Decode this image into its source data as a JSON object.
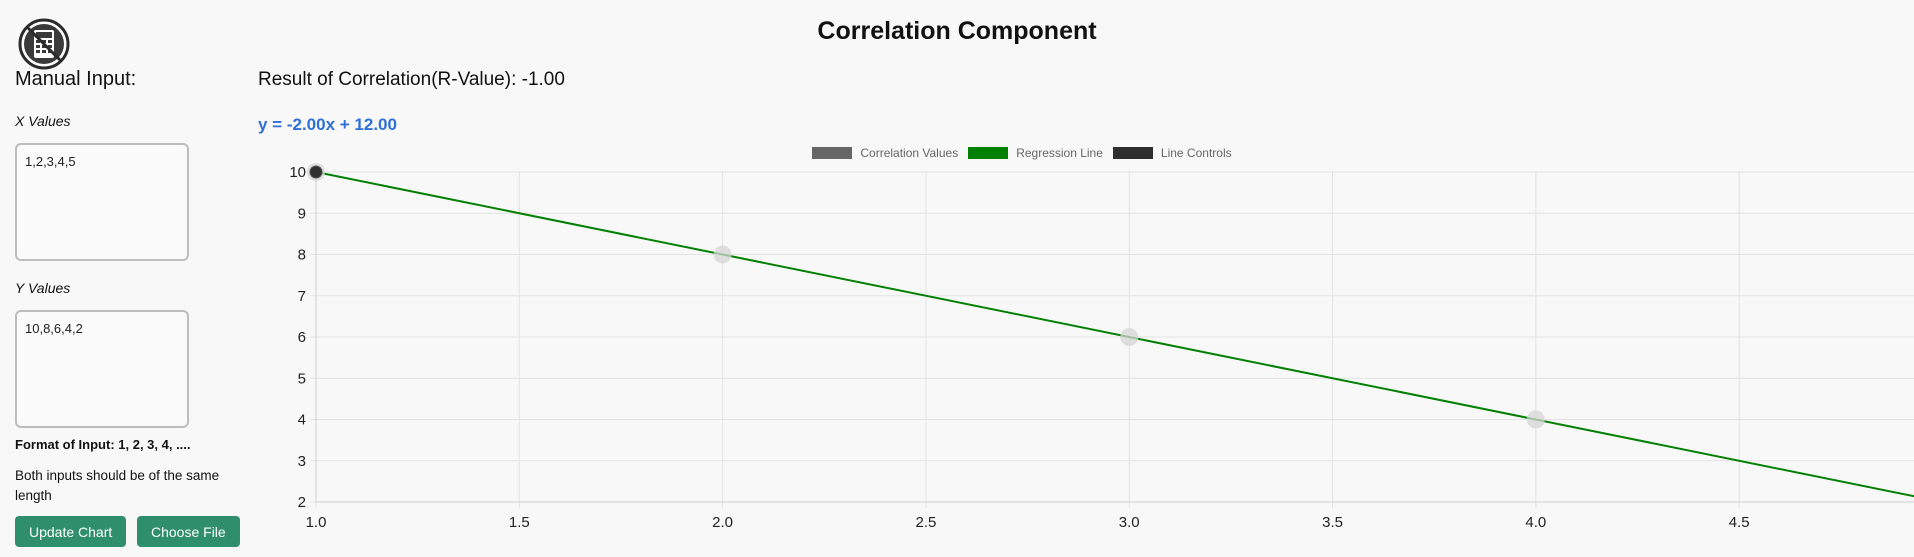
{
  "page": {
    "title": "Correlation Component"
  },
  "manual": {
    "heading": "Manual Input:",
    "x_label": "X Values",
    "x_value": "1,2,3,4,5",
    "y_label": "Y Values",
    "y_value": "10,8,6,4,2",
    "format_note": "Format of Input: 1, 2, 3, 4, ....",
    "length_note": "Both inputs should be of the same length",
    "update_button": "Update Chart",
    "file_button": "Choose File"
  },
  "result": {
    "text": "Result of Correlation(R-Value): -1.00",
    "equation": "y = -2.00x + 12.00"
  },
  "colors": {
    "accent_button": "#2f8f6c",
    "equation": "#2f6fd6",
    "regression": "#008000",
    "correlation_points": "#d6d6d6",
    "line_controls": "#2f2f2f"
  },
  "chart_data": {
    "type": "scatter",
    "title": "",
    "xlabel": "",
    "ylabel": "",
    "xlim": [
      1.0,
      4.93
    ],
    "ylim": [
      2,
      10
    ],
    "x_ticks": [
      "1.0",
      "1.5",
      "2.0",
      "2.5",
      "3.0",
      "3.5",
      "4.0",
      "4.5"
    ],
    "y_ticks": [
      "10",
      "9",
      "8",
      "7",
      "6",
      "5",
      "4",
      "3",
      "2"
    ],
    "grid": true,
    "legend_position": "top",
    "legend": [
      "Correlation Values",
      "Regression Line",
      "Line Controls"
    ],
    "series": [
      {
        "name": "Correlation Values",
        "type": "scatter",
        "x": [
          1,
          2,
          3,
          4,
          5
        ],
        "y": [
          10,
          8,
          6,
          4,
          2
        ]
      },
      {
        "name": "Regression Line",
        "type": "line",
        "slope": -2.0,
        "intercept": 12.0,
        "x": [
          1,
          5
        ],
        "y": [
          10,
          2
        ]
      },
      {
        "name": "Line Controls",
        "type": "scatter",
        "x": [
          1
        ],
        "y": [
          10
        ]
      }
    ]
  }
}
